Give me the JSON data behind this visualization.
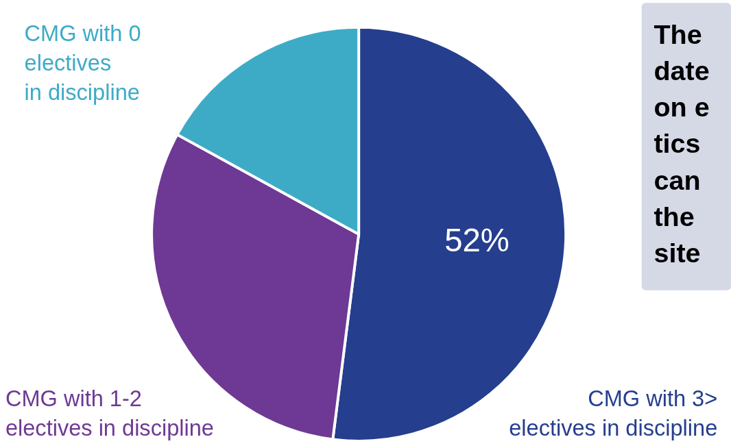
{
  "chart_data": {
    "type": "pie",
    "categories": [
      "CMG with 3>\nelectives in discipline",
      "CMG with 1-2\nelectives in discipline",
      "CMG with 0\nelectives\nin discipline"
    ],
    "values": [
      52,
      31,
      17
    ],
    "colors": [
      "#253e8e",
      "#6e3994",
      "#3eabc6"
    ],
    "value_labels": [
      "52%",
      null,
      null
    ],
    "legend": false,
    "annotations": [
      "The\ndate\non e\ntics\ncan\nthe\nsite"
    ]
  }
}
